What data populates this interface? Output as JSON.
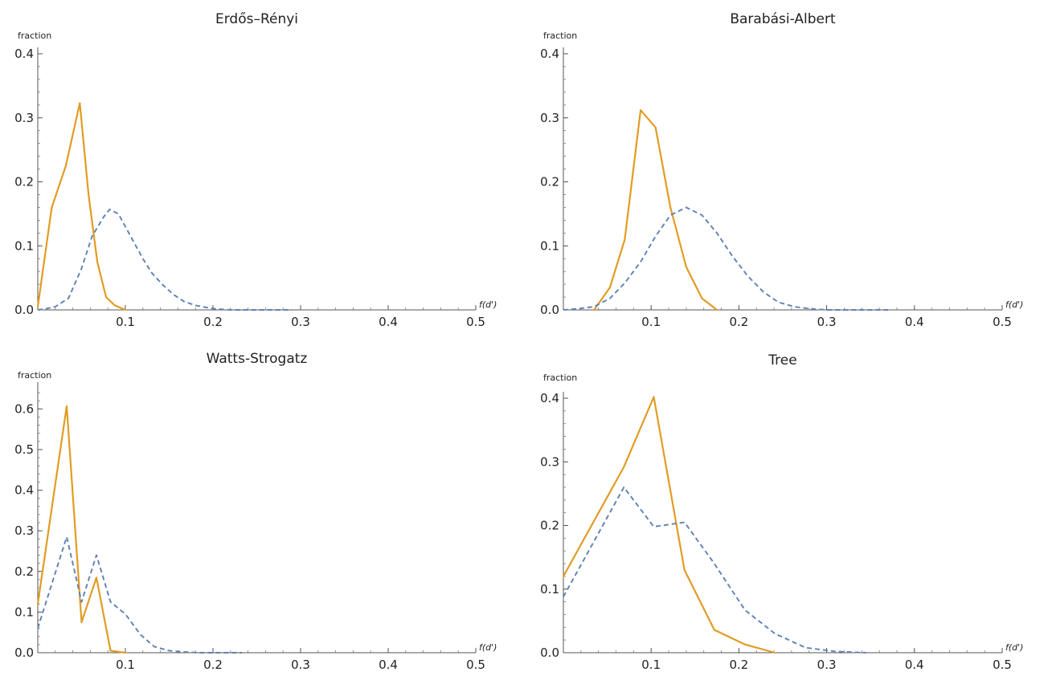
{
  "chart_data": [
    {
      "type": "line",
      "title": "Erdős–Rényi",
      "ylabel": "fraction",
      "xlabel": "f(d')",
      "xlim": [
        0,
        0.5
      ],
      "ylim": [
        0,
        0.4
      ],
      "xticks": [
        "0.1",
        "0.2",
        "0.3",
        "0.4",
        "0.5"
      ],
      "yticks": [
        "0.0",
        "0.1",
        "0.2",
        "0.3",
        "0.4"
      ],
      "x_tick_values": [
        0.1,
        0.2,
        0.3,
        0.4,
        0.5
      ],
      "y_tick_values": [
        0.0,
        0.1,
        0.2,
        0.3,
        0.4
      ],
      "x_minor_step": 0.02,
      "y_minor_step": 0.02,
      "series": [
        {
          "color": "#e19c24",
          "dash": "solid",
          "x": [
            0.0,
            0.016,
            0.032,
            0.048,
            0.058,
            0.068,
            0.078,
            0.088,
            0.1
          ],
          "y": [
            0.005,
            0.16,
            0.225,
            0.323,
            0.18,
            0.075,
            0.02,
            0.007,
            0.0
          ]
        },
        {
          "color": "#5e81b5",
          "dash": "dashed",
          "x": [
            0.0,
            0.01,
            0.02,
            0.035,
            0.05,
            0.062,
            0.075,
            0.082,
            0.092,
            0.1,
            0.11,
            0.12,
            0.13,
            0.142,
            0.155,
            0.167,
            0.18,
            0.2,
            0.22,
            0.25,
            0.29
          ],
          "y": [
            0.0,
            0.002,
            0.005,
            0.018,
            0.065,
            0.115,
            0.145,
            0.157,
            0.15,
            0.13,
            0.105,
            0.08,
            0.058,
            0.04,
            0.024,
            0.013,
            0.007,
            0.002,
            0.0,
            0.0,
            0.0
          ]
        }
      ]
    },
    {
      "type": "line",
      "title": "Barabási-Albert",
      "ylabel": "fraction",
      "xlabel": "f(d')",
      "xlim": [
        0,
        0.5
      ],
      "ylim": [
        0,
        0.4
      ],
      "xticks": [
        "0.1",
        "0.2",
        "0.3",
        "0.4",
        "0.5"
      ],
      "yticks": [
        "0.0",
        "0.1",
        "0.2",
        "0.3",
        "0.4"
      ],
      "x_tick_values": [
        0.1,
        0.2,
        0.3,
        0.4,
        0.5
      ],
      "y_tick_values": [
        0.0,
        0.1,
        0.2,
        0.3,
        0.4
      ],
      "x_minor_step": 0.02,
      "y_minor_step": 0.02,
      "series": [
        {
          "color": "#e19c24",
          "dash": "solid",
          "x": [
            0.035,
            0.053,
            0.07,
            0.088,
            0.105,
            0.122,
            0.14,
            0.158,
            0.175
          ],
          "y": [
            0.0,
            0.035,
            0.11,
            0.312,
            0.285,
            0.16,
            0.067,
            0.018,
            0.0
          ]
        },
        {
          "color": "#5e81b5",
          "dash": "dashed",
          "x": [
            0.0,
            0.018,
            0.035,
            0.053,
            0.07,
            0.088,
            0.105,
            0.122,
            0.14,
            0.158,
            0.175,
            0.192,
            0.21,
            0.228,
            0.245,
            0.263,
            0.28,
            0.3,
            0.32,
            0.34,
            0.37
          ],
          "y": [
            0.0,
            0.002,
            0.005,
            0.018,
            0.042,
            0.075,
            0.115,
            0.148,
            0.16,
            0.148,
            0.12,
            0.085,
            0.053,
            0.028,
            0.012,
            0.005,
            0.002,
            0.0,
            0.0,
            0.0,
            0.0
          ]
        }
      ]
    },
    {
      "type": "line",
      "title": "Watts-Strogatz",
      "ylabel": "fraction",
      "xlabel": "f(d')",
      "xlim": [
        0,
        0.5
      ],
      "ylim": [
        0,
        0.65
      ],
      "xticks": [
        "0.1",
        "0.2",
        "0.3",
        "0.4",
        "0.5"
      ],
      "yticks": [
        "0.0",
        "0.1",
        "0.2",
        "0.3",
        "0.4",
        "0.5",
        "0.6"
      ],
      "x_tick_values": [
        0.1,
        0.2,
        0.3,
        0.4,
        0.5
      ],
      "y_tick_values": [
        0.0,
        0.1,
        0.2,
        0.3,
        0.4,
        0.5,
        0.6
      ],
      "x_minor_step": 0.02,
      "y_minor_step": 0.02,
      "series": [
        {
          "color": "#e19c24",
          "dash": "solid",
          "x": [
            0.0,
            0.033,
            0.05,
            0.067,
            0.083,
            0.1
          ],
          "y": [
            0.12,
            0.607,
            0.075,
            0.185,
            0.005,
            0.0
          ]
        },
        {
          "color": "#5e81b5",
          "dash": "dashed",
          "x": [
            0.0,
            0.033,
            0.05,
            0.067,
            0.083,
            0.1,
            0.117,
            0.133,
            0.15,
            0.167,
            0.183,
            0.2,
            0.217,
            0.233
          ],
          "y": [
            0.06,
            0.285,
            0.125,
            0.24,
            0.125,
            0.095,
            0.045,
            0.015,
            0.005,
            0.002,
            0.0,
            0.0,
            0.0,
            0.0
          ]
        }
      ]
    },
    {
      "type": "line",
      "title": "Tree",
      "ylabel": "fraction",
      "xlabel": "f(d')",
      "xlim": [
        0,
        0.5
      ],
      "ylim": [
        0,
        0.4
      ],
      "xticks": [
        "0.1",
        "0.2",
        "0.3",
        "0.4",
        "0.5"
      ],
      "yticks": [
        "0.0",
        "0.1",
        "0.2",
        "0.3",
        "0.4"
      ],
      "x_tick_values": [
        0.1,
        0.2,
        0.3,
        0.4,
        0.5
      ],
      "y_tick_values": [
        0.0,
        0.1,
        0.2,
        0.3,
        0.4
      ],
      "x_minor_step": 0.02,
      "y_minor_step": 0.02,
      "series": [
        {
          "color": "#e19c24",
          "dash": "solid",
          "x": [
            0.0,
            0.069,
            0.103,
            0.138,
            0.172,
            0.207,
            0.241
          ],
          "y": [
            0.12,
            0.292,
            0.402,
            0.13,
            0.036,
            0.013,
            0.0
          ]
        },
        {
          "color": "#5e81b5",
          "dash": "dashed",
          "x": [
            0.0,
            0.069,
            0.103,
            0.138,
            0.172,
            0.207,
            0.241,
            0.276,
            0.31,
            0.345
          ],
          "y": [
            0.088,
            0.26,
            0.198,
            0.205,
            0.14,
            0.067,
            0.03,
            0.008,
            0.002,
            0.0
          ]
        }
      ]
    }
  ]
}
